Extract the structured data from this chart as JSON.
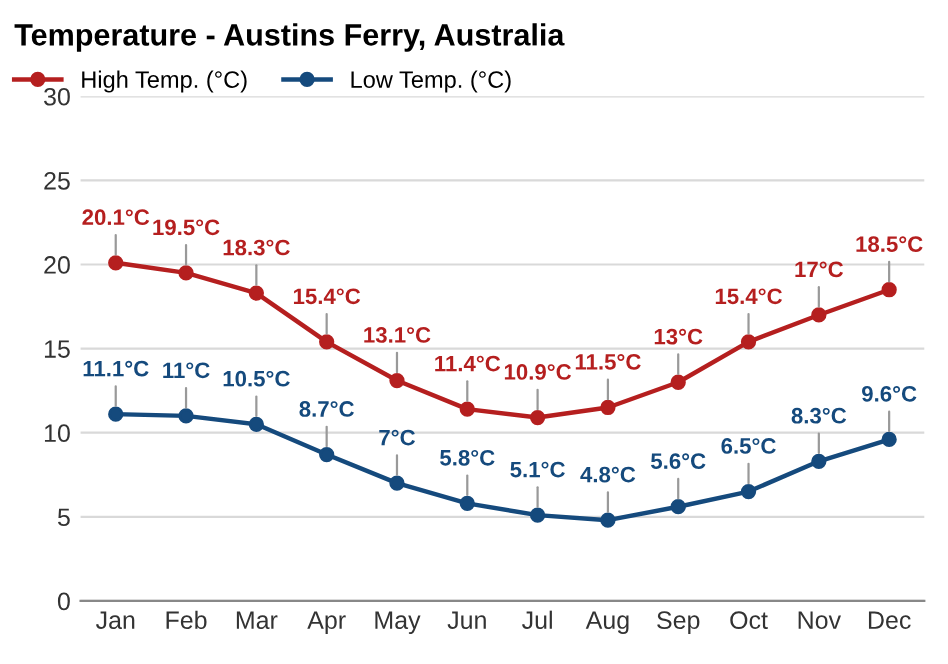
{
  "chart_data": {
    "type": "line",
    "title": "Temperature - Austins Ferry, Australia",
    "categories": [
      "Jan",
      "Feb",
      "Mar",
      "Apr",
      "May",
      "Jun",
      "Jul",
      "Aug",
      "Sep",
      "Oct",
      "Nov",
      "Dec"
    ],
    "series": [
      {
        "name": "High Temp. (°C)",
        "color": "#b51f1f",
        "values": [
          20.1,
          19.5,
          18.3,
          15.4,
          13.1,
          11.4,
          10.9,
          11.5,
          13,
          15.4,
          17,
          18.5
        ],
        "value_labels": [
          "20.1°C",
          "19.5°C",
          "18.3°C",
          "15.4°C",
          "13.1°C",
          "11.4°C",
          "10.9°C",
          "11.5°C",
          "13°C",
          "15.4°C",
          "17°C",
          "18.5°C"
        ]
      },
      {
        "name": "Low Temp. (°C)",
        "color": "#154a7d",
        "values": [
          11.1,
          11,
          10.5,
          8.7,
          7,
          5.8,
          5.1,
          4.8,
          5.6,
          6.5,
          8.3,
          9.6
        ],
        "value_labels": [
          "11.1°C",
          "11°C",
          "10.5°C",
          "8.7°C",
          "7°C",
          "5.8°C",
          "5.1°C",
          "4.8°C",
          "5.6°C",
          "6.5°C",
          "8.3°C",
          "9.6°C"
        ]
      }
    ],
    "ylim": [
      0,
      30
    ],
    "yticks": [
      0,
      5,
      10,
      15,
      20,
      25,
      30
    ],
    "grid": "y",
    "legend": "top left",
    "marker": "circle",
    "line_style": "solid"
  }
}
